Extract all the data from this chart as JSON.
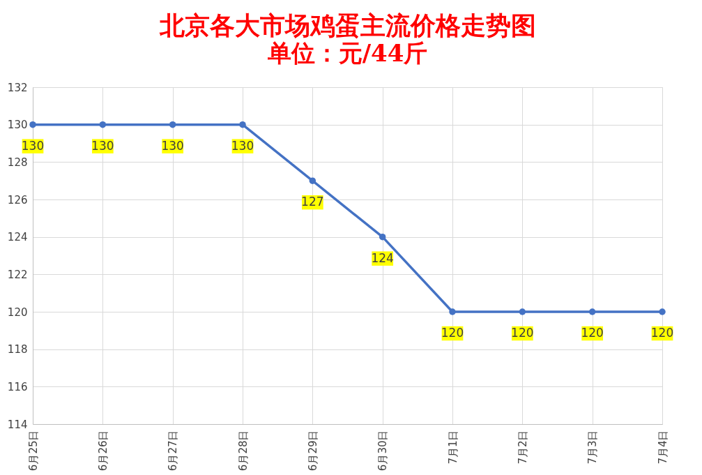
{
  "chart_data": {
    "type": "line",
    "title": "北京各大市场鸡蛋主流价格走势图",
    "subtitle": "单位：元/44斤",
    "categories": [
      "6月25日",
      "6月26日",
      "6月27日",
      "6月28日",
      "6月29日",
      "6月30日",
      "7月1日",
      "7月2日",
      "7月3日",
      "7月4日"
    ],
    "series": [
      {
        "color": "#4472c4",
        "values": [
          130,
          130,
          130,
          130,
          127,
          124,
          120,
          120,
          120,
          120
        ]
      }
    ],
    "ylim": [
      114,
      132
    ],
    "yticks": [
      114,
      116,
      118,
      120,
      122,
      124,
      126,
      128,
      130,
      132
    ],
    "grid": true,
    "marker": "circle",
    "line_style": "solid",
    "data_labels": true
  }
}
